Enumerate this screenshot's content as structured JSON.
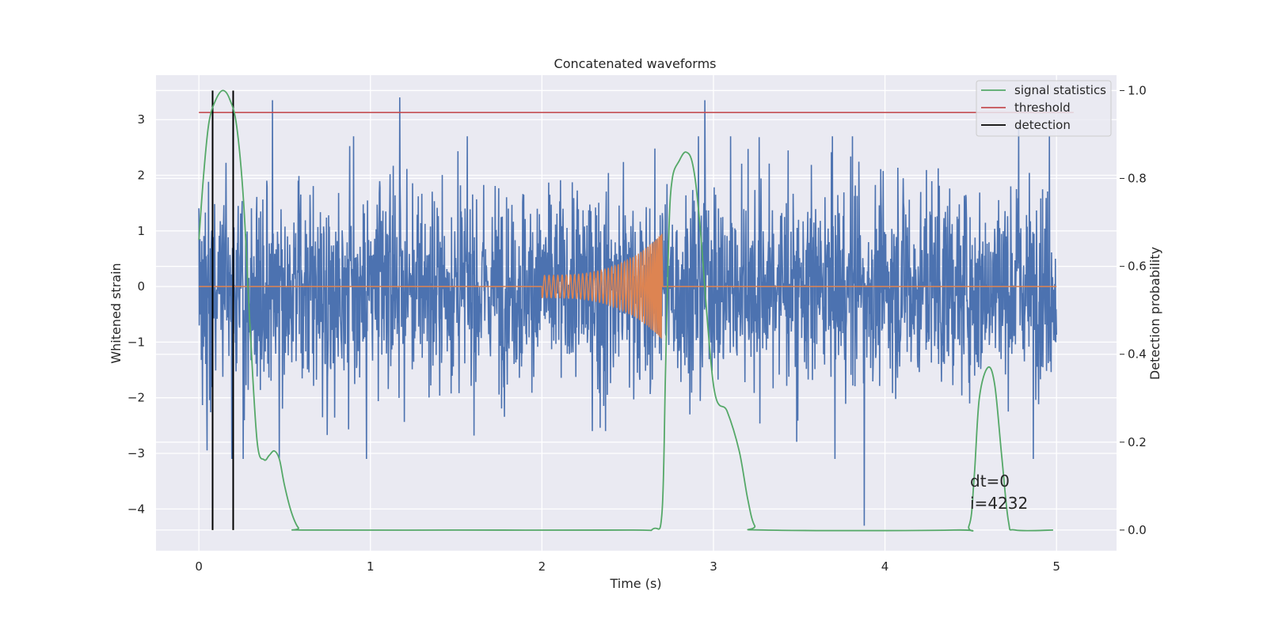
{
  "chart_data": {
    "type": "line",
    "title": "Concatenated waveforms",
    "xlabel": "Time (s)",
    "ylabel": "Whitened strain",
    "y2label": "Detection probability",
    "xlim": [
      -0.25,
      5.35
    ],
    "ylim": [
      -4.75,
      3.8
    ],
    "y2lim": [
      -0.047,
      1.035
    ],
    "x_ticks": [
      0,
      1,
      2,
      3,
      4,
      5
    ],
    "y_ticks": [
      -4,
      -3,
      -2,
      -1,
      0,
      1,
      2,
      3
    ],
    "y2_ticks": [
      0.0,
      0.2,
      0.4,
      0.6,
      0.8,
      1.0
    ],
    "grid": true,
    "legend_position": "top-right",
    "series": [
      {
        "name": "",
        "kind": "noise",
        "color": "#4c72b0",
        "x_range": [
          0,
          5
        ],
        "typical_amplitude": 1.0,
        "peaks": [
          [
            0.43,
            3.35
          ],
          [
            1.17,
            3.4
          ],
          [
            2.95,
            3.35
          ],
          [
            3.88,
            -4.3
          ],
          [
            4.78,
            2.9
          ]
        ]
      },
      {
        "name": "",
        "kind": "chirp",
        "color": "#dd8452",
        "x_range": [
          2.0,
          2.7
        ],
        "amplitude_start": 0.2,
        "amplitude_end": 0.95,
        "baseline": 0
      },
      {
        "name": "signal statistics",
        "axis": "right",
        "color": "#55a868",
        "x": [
          0,
          0.03,
          0.06,
          0.1,
          0.14,
          0.18,
          0.22,
          0.26,
          0.3,
          0.34,
          0.38,
          0.41,
          0.44,
          0.47,
          0.5,
          0.54,
          0.58,
          0.62,
          1.5,
          2.5,
          2.65,
          2.7,
          2.72,
          2.74,
          2.76,
          2.8,
          2.84,
          2.88,
          2.92,
          3.0,
          3.08,
          3.15,
          3.2,
          3.24,
          3.3,
          4.4,
          4.49,
          4.52,
          4.55,
          4.6,
          4.64,
          4.68,
          4.72,
          4.76,
          4.98
        ],
        "y": [
          0.66,
          0.82,
          0.93,
          0.98,
          1.0,
          0.98,
          0.92,
          0.75,
          0.45,
          0.2,
          0.16,
          0.17,
          0.18,
          0.16,
          0.1,
          0.04,
          0.005,
          0.0,
          0.0,
          0.0,
          0.003,
          0.04,
          0.35,
          0.68,
          0.8,
          0.84,
          0.86,
          0.83,
          0.7,
          0.33,
          0.27,
          0.18,
          0.07,
          0.01,
          0.0,
          0.0,
          0.01,
          0.12,
          0.3,
          0.37,
          0.33,
          0.17,
          0.02,
          0.0,
          0.0
        ]
      },
      {
        "name": "threshold",
        "axis": "right",
        "color": "#c44e52",
        "x": [
          0,
          5.1
        ],
        "y": [
          0.95,
          0.95
        ]
      },
      {
        "name": "detection",
        "axis": "right",
        "color": "#000000",
        "x": [
          0.08,
          0.2
        ],
        "y_range": [
          0.0,
          1.0
        ]
      }
    ],
    "annotations": [
      "dt=0",
      "i=4232"
    ]
  }
}
